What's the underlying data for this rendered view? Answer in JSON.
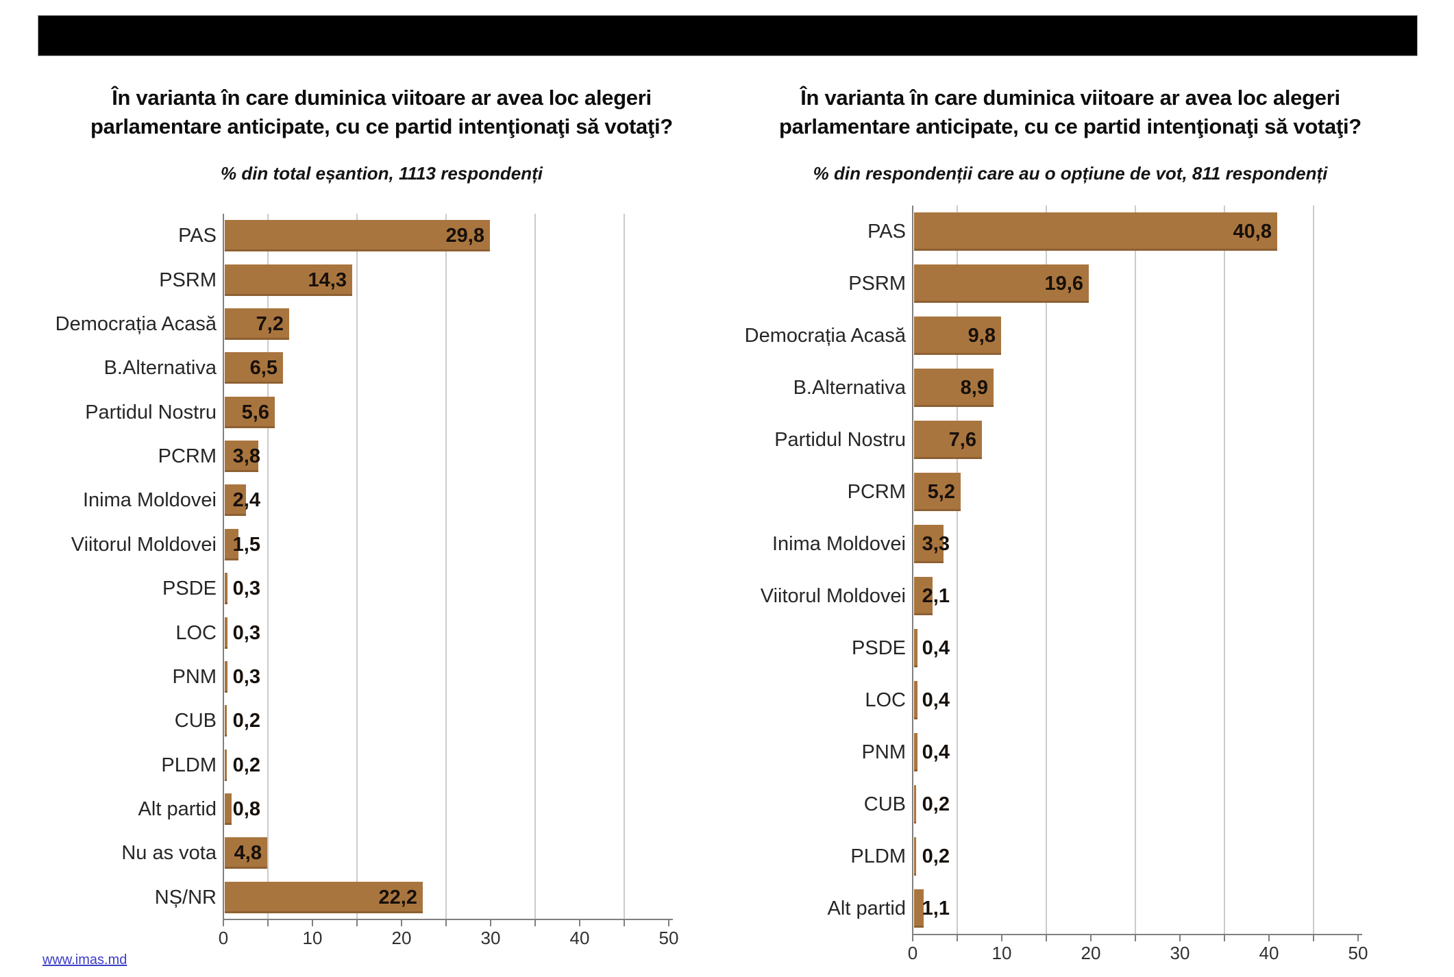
{
  "header": {
    "redacted_bar": true
  },
  "footer": {
    "link_text": "www.imas.md",
    "link_color": "#3B3BC8"
  },
  "style": {
    "bar_color": "#A9753F",
    "gridline_color": "#cbcbcb",
    "axis_color": "#7f7f7f"
  },
  "chart_data": [
    {
      "type": "bar",
      "orientation": "horizontal",
      "title": "În varianta în care duminica viitoare ar avea loc alegeri parlamentare anticipate, cu ce partid intenţionaţi să votaţi?",
      "title_lines": [
        "În varianta în care duminica viitoare ar avea loc alegeri",
        "parlamentare anticipate, cu ce partid intenţionaţi să votaţi?"
      ],
      "subtitle": "% din total eșantion, 1113 respondenți",
      "categories": [
        "PAS",
        "PSRM",
        "Democrația Acasă",
        "B.Alternativa",
        "Partidul Nostru",
        "PCRM",
        "Inima Moldovei",
        "Viitorul Moldovei",
        "PSDE",
        "LOC",
        "PNM",
        "CUB",
        "PLDM",
        "Alt partid",
        "Nu as vota",
        "NȘ/NR"
      ],
      "values": [
        29.8,
        14.3,
        7.2,
        6.5,
        5.6,
        3.8,
        2.4,
        1.5,
        0.3,
        0.3,
        0.3,
        0.2,
        0.2,
        0.8,
        4.8,
        22.2
      ],
      "value_labels": [
        "29,8",
        "14,3",
        "7,2",
        "6,5",
        "5,6",
        "3,8",
        "2,4",
        "1,5",
        "0,3",
        "0,3",
        "0,3",
        "0,2",
        "0,2",
        "0,8",
        "4,8",
        "22,2"
      ],
      "xlabel": "",
      "ylabel": "",
      "xlim": [
        0,
        50
      ],
      "x_ticks": [
        0,
        10,
        20,
        30,
        40,
        50
      ],
      "x_tick_labels": [
        "0",
        "10",
        "20",
        "30",
        "40",
        "50"
      ],
      "gridlines_at": [
        5,
        15,
        25,
        35,
        45
      ],
      "grid": true,
      "legend": false
    },
    {
      "type": "bar",
      "orientation": "horizontal",
      "title": "În varianta în care duminica viitoare ar avea loc alegeri parlamentare anticipate, cu ce partid intenţionaţi să votaţi?",
      "title_lines": [
        "În varianta în care duminica viitoare ar avea loc alegeri",
        "parlamentare anticipate, cu ce partid intenţionaţi să votaţi?"
      ],
      "subtitle": "% din respondenții care au o opțiune de vot, 811 respondenți",
      "categories": [
        "PAS",
        "PSRM",
        "Democrația Acasă",
        "B.Alternativa",
        "Partidul Nostru",
        "PCRM",
        "Inima Moldovei",
        "Viitorul Moldovei",
        "PSDE",
        "LOC",
        "PNM",
        "CUB",
        "PLDM",
        "Alt partid"
      ],
      "values": [
        40.8,
        19.6,
        9.8,
        8.9,
        7.6,
        5.2,
        3.3,
        2.1,
        0.4,
        0.4,
        0.4,
        0.2,
        0.2,
        1.1
      ],
      "value_labels": [
        "40,8",
        "19,6",
        "9,8",
        "8,9",
        "7,6",
        "5,2",
        "3,3",
        "2,1",
        "0,4",
        "0,4",
        "0,4",
        "0,2",
        "0,2",
        "1,1"
      ],
      "xlabel": "",
      "ylabel": "",
      "xlim": [
        0,
        50
      ],
      "x_ticks": [
        0,
        10,
        20,
        30,
        40,
        50
      ],
      "x_tick_labels": [
        "0",
        "10",
        "20",
        "30",
        "40",
        "50"
      ],
      "gridlines_at": [
        5,
        15,
        25,
        35,
        45
      ],
      "grid": true,
      "legend": false
    }
  ]
}
